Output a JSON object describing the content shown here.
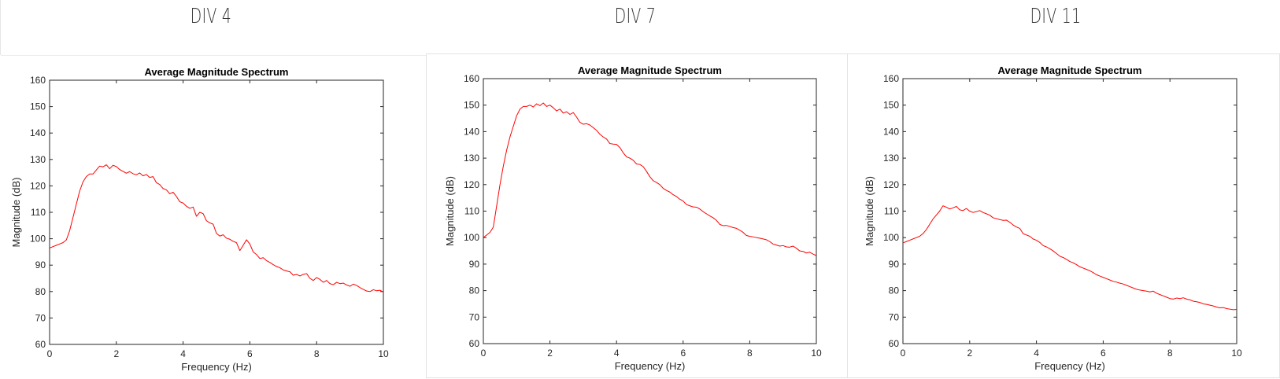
{
  "headings": [
    "DIV 4",
    "DIV 7",
    "DIV 11"
  ],
  "chart_data": [
    {
      "type": "line",
      "title": "Average Magnitude Spectrum",
      "xlabel": "Frequency (Hz)",
      "ylabel": "Magnitude (dB)",
      "xlim": [
        0,
        10
      ],
      "ylim": [
        60,
        160
      ],
      "xticks": [
        0,
        2,
        4,
        6,
        8,
        10
      ],
      "yticks": [
        60,
        70,
        80,
        90,
        100,
        110,
        120,
        130,
        140,
        150,
        160
      ],
      "grid": false,
      "color": "#ff0000",
      "series": [
        {
          "x": [
            0,
            0.1,
            0.2,
            0.3,
            0.4,
            0.5,
            0.6,
            0.7,
            0.8,
            0.9,
            1.0,
            1.1,
            1.2,
            1.3,
            1.4,
            1.5,
            1.6,
            1.7,
            1.8,
            1.9,
            2.0,
            2.1,
            2.2,
            2.3,
            2.4,
            2.5,
            2.6,
            2.7,
            2.8,
            2.9,
            3.0,
            3.1,
            3.2,
            3.3,
            3.4,
            3.5,
            3.6,
            3.7,
            3.8,
            3.9,
            4.0,
            4.1,
            4.2,
            4.3,
            4.4,
            4.5,
            4.6,
            4.7,
            4.8,
            4.9,
            5.0,
            5.1,
            5.2,
            5.3,
            5.4,
            5.5,
            5.6,
            5.7,
            5.8,
            5.9,
            6.0,
            6.1,
            6.2,
            6.3,
            6.4,
            6.5,
            6.6,
            6.7,
            6.8,
            6.9,
            7.0,
            7.1,
            7.2,
            7.3,
            7.4,
            7.5,
            7.6,
            7.7,
            7.8,
            7.9,
            8.0,
            8.1,
            8.2,
            8.3,
            8.4,
            8.5,
            8.6,
            8.7,
            8.8,
            8.9,
            9.0,
            9.1,
            9.2,
            9.3,
            9.4,
            9.5,
            9.6,
            9.7,
            9.8,
            9.9,
            10.0
          ],
          "y": [
            96.5,
            97,
            97.5,
            98,
            98.5,
            99.5,
            103,
            108,
            113,
            118,
            121.5,
            123.5,
            124.5,
            124.5,
            126,
            127.5,
            127.2,
            128,
            126.5,
            127.8,
            127.3,
            126.2,
            125.5,
            124.8,
            125.4,
            124.6,
            124.2,
            124.9,
            123.8,
            124.3,
            123.2,
            123.5,
            121.2,
            120.5,
            119,
            118.5,
            117,
            117.6,
            116,
            114,
            113.5,
            112.3,
            111.5,
            112,
            108.5,
            110,
            109.5,
            106.8,
            106,
            105.5,
            102,
            101,
            101.5,
            100.2,
            99.8,
            99,
            98.5,
            95.5,
            97.5,
            99.6,
            98,
            95,
            94,
            92.5,
            92.8,
            91.7,
            91,
            90.2,
            89.5,
            89,
            88.2,
            87.8,
            87.5,
            86.2,
            86.5,
            85.9,
            86.5,
            86.8,
            85,
            84.2,
            85.3,
            84.6,
            83.5,
            84.2,
            83,
            82.6,
            83.5,
            83,
            83.2,
            82.5,
            82,
            82.8,
            82.3,
            81.5,
            80.8,
            80.2,
            80,
            80.7,
            80.3,
            80.5,
            79.8
          ]
        }
      ]
    },
    {
      "type": "line",
      "title": "Average Magnitude Spectrum",
      "xlabel": "Frequency (Hz)",
      "ylabel": "Magnitude (dB)",
      "xlim": [
        0,
        10
      ],
      "ylim": [
        60,
        160
      ],
      "xticks": [
        0,
        2,
        4,
        6,
        8,
        10
      ],
      "yticks": [
        60,
        70,
        80,
        90,
        100,
        110,
        120,
        130,
        140,
        150,
        160
      ],
      "grid": false,
      "color": "#ff0000",
      "series": [
        {
          "x": [
            0,
            0.1,
            0.2,
            0.3,
            0.4,
            0.5,
            0.6,
            0.7,
            0.8,
            0.9,
            1.0,
            1.1,
            1.2,
            1.3,
            1.4,
            1.5,
            1.6,
            1.7,
            1.8,
            1.9,
            2.0,
            2.1,
            2.2,
            2.3,
            2.4,
            2.5,
            2.6,
            2.7,
            2.8,
            2.9,
            3.0,
            3.1,
            3.2,
            3.3,
            3.4,
            3.5,
            3.6,
            3.7,
            3.8,
            3.9,
            4.0,
            4.1,
            4.2,
            4.3,
            4.4,
            4.5,
            4.6,
            4.7,
            4.8,
            4.9,
            5.0,
            5.1,
            5.2,
            5.3,
            5.4,
            5.5,
            5.6,
            5.7,
            5.8,
            5.9,
            6.0,
            6.1,
            6.2,
            6.3,
            6.4,
            6.5,
            6.6,
            6.7,
            6.8,
            6.9,
            7.0,
            7.1,
            7.2,
            7.3,
            7.4,
            7.5,
            7.6,
            7.7,
            7.8,
            7.9,
            8.0,
            8.1,
            8.2,
            8.3,
            8.4,
            8.5,
            8.6,
            8.7,
            8.8,
            8.9,
            9.0,
            9.1,
            9.2,
            9.3,
            9.4,
            9.5,
            9.6,
            9.7,
            9.8,
            9.9,
            10.0
          ],
          "y": [
            100,
            101,
            102,
            104,
            112,
            120,
            127,
            133,
            138,
            142,
            146,
            148.5,
            149.5,
            149.5,
            150,
            149.3,
            150.5,
            149.8,
            150.8,
            149.5,
            150,
            149,
            147.8,
            148.5,
            147,
            147.5,
            146.5,
            147.2,
            145.5,
            143.5,
            142.8,
            143,
            142.5,
            141.5,
            140.5,
            139,
            138,
            137.2,
            135.5,
            135.3,
            135.2,
            134,
            132,
            130.5,
            130,
            129.2,
            127.8,
            127.6,
            126.8,
            125,
            123,
            121.5,
            120.8,
            120,
            118.6,
            117.8,
            117.2,
            116.2,
            115.5,
            114.5,
            113.8,
            112.5,
            112,
            111.6,
            111.5,
            110.8,
            109.8,
            109,
            108.2,
            107.5,
            106.5,
            105,
            104.5,
            104.6,
            104.2,
            103.8,
            103.5,
            102.8,
            102,
            100.8,
            100.5,
            100.3,
            100,
            99.8,
            99.5,
            99.2,
            98.5,
            97.6,
            97.2,
            96.8,
            97,
            96.5,
            96.4,
            96.8,
            96,
            95,
            94.8,
            94.2,
            94.5,
            93.8,
            93.2
          ]
        }
      ]
    },
    {
      "type": "line",
      "title": "Average Magnitude Spectrum",
      "xlabel": "Frequency (Hz)",
      "ylabel": "Magnitude (dB)",
      "xlim": [
        0,
        10
      ],
      "ylim": [
        60,
        160
      ],
      "xticks": [
        0,
        2,
        4,
        6,
        8,
        10
      ],
      "yticks": [
        60,
        70,
        80,
        90,
        100,
        110,
        120,
        130,
        140,
        150,
        160
      ],
      "grid": false,
      "color": "#ff0000",
      "series": [
        {
          "x": [
            0,
            0.1,
            0.2,
            0.3,
            0.4,
            0.5,
            0.6,
            0.7,
            0.8,
            0.9,
            1.0,
            1.1,
            1.2,
            1.3,
            1.4,
            1.5,
            1.6,
            1.7,
            1.8,
            1.9,
            2.0,
            2.1,
            2.2,
            2.3,
            2.4,
            2.5,
            2.6,
            2.7,
            2.8,
            2.9,
            3.0,
            3.1,
            3.2,
            3.3,
            3.4,
            3.5,
            3.6,
            3.7,
            3.8,
            3.9,
            4.0,
            4.1,
            4.2,
            4.3,
            4.4,
            4.5,
            4.6,
            4.7,
            4.8,
            4.9,
            5.0,
            5.1,
            5.2,
            5.3,
            5.4,
            5.5,
            5.6,
            5.7,
            5.8,
            5.9,
            6.0,
            6.1,
            6.2,
            6.3,
            6.4,
            6.5,
            6.6,
            6.7,
            6.8,
            6.9,
            7.0,
            7.1,
            7.2,
            7.3,
            7.4,
            7.5,
            7.6,
            7.7,
            7.8,
            7.9,
            8.0,
            8.1,
            8.2,
            8.3,
            8.4,
            8.5,
            8.6,
            8.7,
            8.8,
            8.9,
            9.0,
            9.1,
            9.2,
            9.3,
            9.4,
            9.5,
            9.6,
            9.7,
            9.8,
            9.9,
            10.0
          ],
          "y": [
            98,
            98.5,
            99,
            99.5,
            100,
            100.5,
            101.5,
            103,
            105,
            107,
            108.5,
            110,
            112,
            111.5,
            110.8,
            111.2,
            111.8,
            110.5,
            110.2,
            111,
            110,
            109.5,
            109.8,
            110.2,
            109.5,
            109,
            108.5,
            107.5,
            107.2,
            106.8,
            106.5,
            106.6,
            105.8,
            104.8,
            104,
            103.5,
            101.5,
            101,
            100.5,
            99.5,
            99,
            98.2,
            97,
            96.5,
            95.8,
            95,
            94,
            93,
            92.5,
            91.8,
            91,
            90.5,
            89.8,
            89,
            88.5,
            88,
            87.5,
            86.8,
            86,
            85.5,
            85,
            84.5,
            84,
            83.5,
            83.2,
            82.8,
            82.5,
            82,
            81.5,
            81,
            80.5,
            80.2,
            80,
            79.8,
            79.5,
            79.8,
            79,
            78.5,
            78,
            77.5,
            77,
            76.8,
            77.2,
            77,
            77.3,
            76.8,
            76.5,
            76,
            75.8,
            75.5,
            75,
            74.8,
            74.5,
            74.2,
            73.8,
            73.5,
            73.6,
            73.2,
            73,
            72.8,
            72.9
          ]
        }
      ]
    }
  ]
}
